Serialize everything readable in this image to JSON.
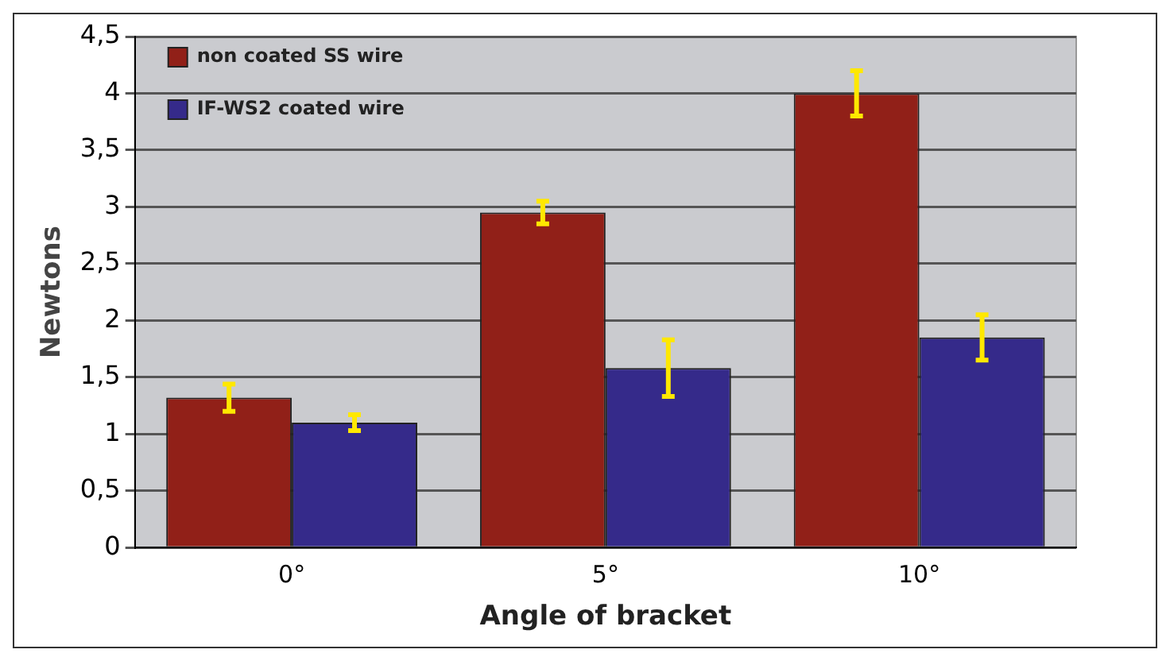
{
  "chart_data": {
    "type": "bar",
    "xlabel": "Angle of bracket",
    "ylabel": "Newtons",
    "categories": [
      "0°",
      "5°",
      "10°"
    ],
    "series": [
      {
        "name": "non coated SS wire",
        "color": "#912018",
        "values": [
          1.32,
          2.95,
          4.0
        ],
        "errors": [
          0.12,
          0.1,
          0.2
        ]
      },
      {
        "name": "IF-WS2 coated wire",
        "color": "#352a8a",
        "values": [
          1.1,
          1.58,
          1.85
        ],
        "errors": [
          0.07,
          0.25,
          0.2
        ]
      }
    ],
    "ylim": [
      0,
      4.5
    ],
    "yticks": [
      0,
      {
        "value": 0.5,
        "label": "0,5"
      },
      1,
      {
        "value": 1.5,
        "label": "1,5"
      },
      2,
      {
        "value": 2.5,
        "label": "2,5"
      },
      3,
      {
        "value": 3.5,
        "label": "3,5"
      },
      4,
      {
        "value": 4.5,
        "label": "4,5"
      }
    ],
    "grid": "y",
    "legend": "top left"
  }
}
